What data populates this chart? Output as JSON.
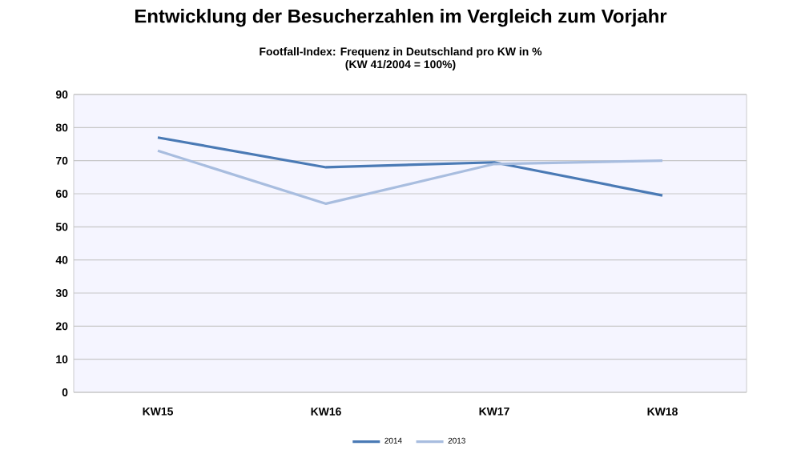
{
  "chart_data": {
    "type": "line",
    "title": "Entwicklung der Besucherzahlen im Vergleich zum Vorjahr",
    "subtitle": "Footfall-Index: Frequenz in Deutschland pro KW in %\n(KW 41/2004 = 100%)",
    "categories": [
      "KW15",
      "KW16",
      "KW17",
      "KW18"
    ],
    "series": [
      {
        "name": "2014",
        "color": "#4a7ab5",
        "values": [
          77,
          68,
          69.5,
          59.5
        ]
      },
      {
        "name": "2013",
        "color": "#a8bddf",
        "values": [
          73,
          57,
          69,
          70
        ]
      }
    ],
    "ylim": [
      0,
      90
    ],
    "yticks": [
      0,
      10,
      20,
      30,
      40,
      50,
      60,
      70,
      80,
      90
    ],
    "grid": "y",
    "legend": "bottom",
    "marker": "none",
    "line_style": "solid"
  }
}
